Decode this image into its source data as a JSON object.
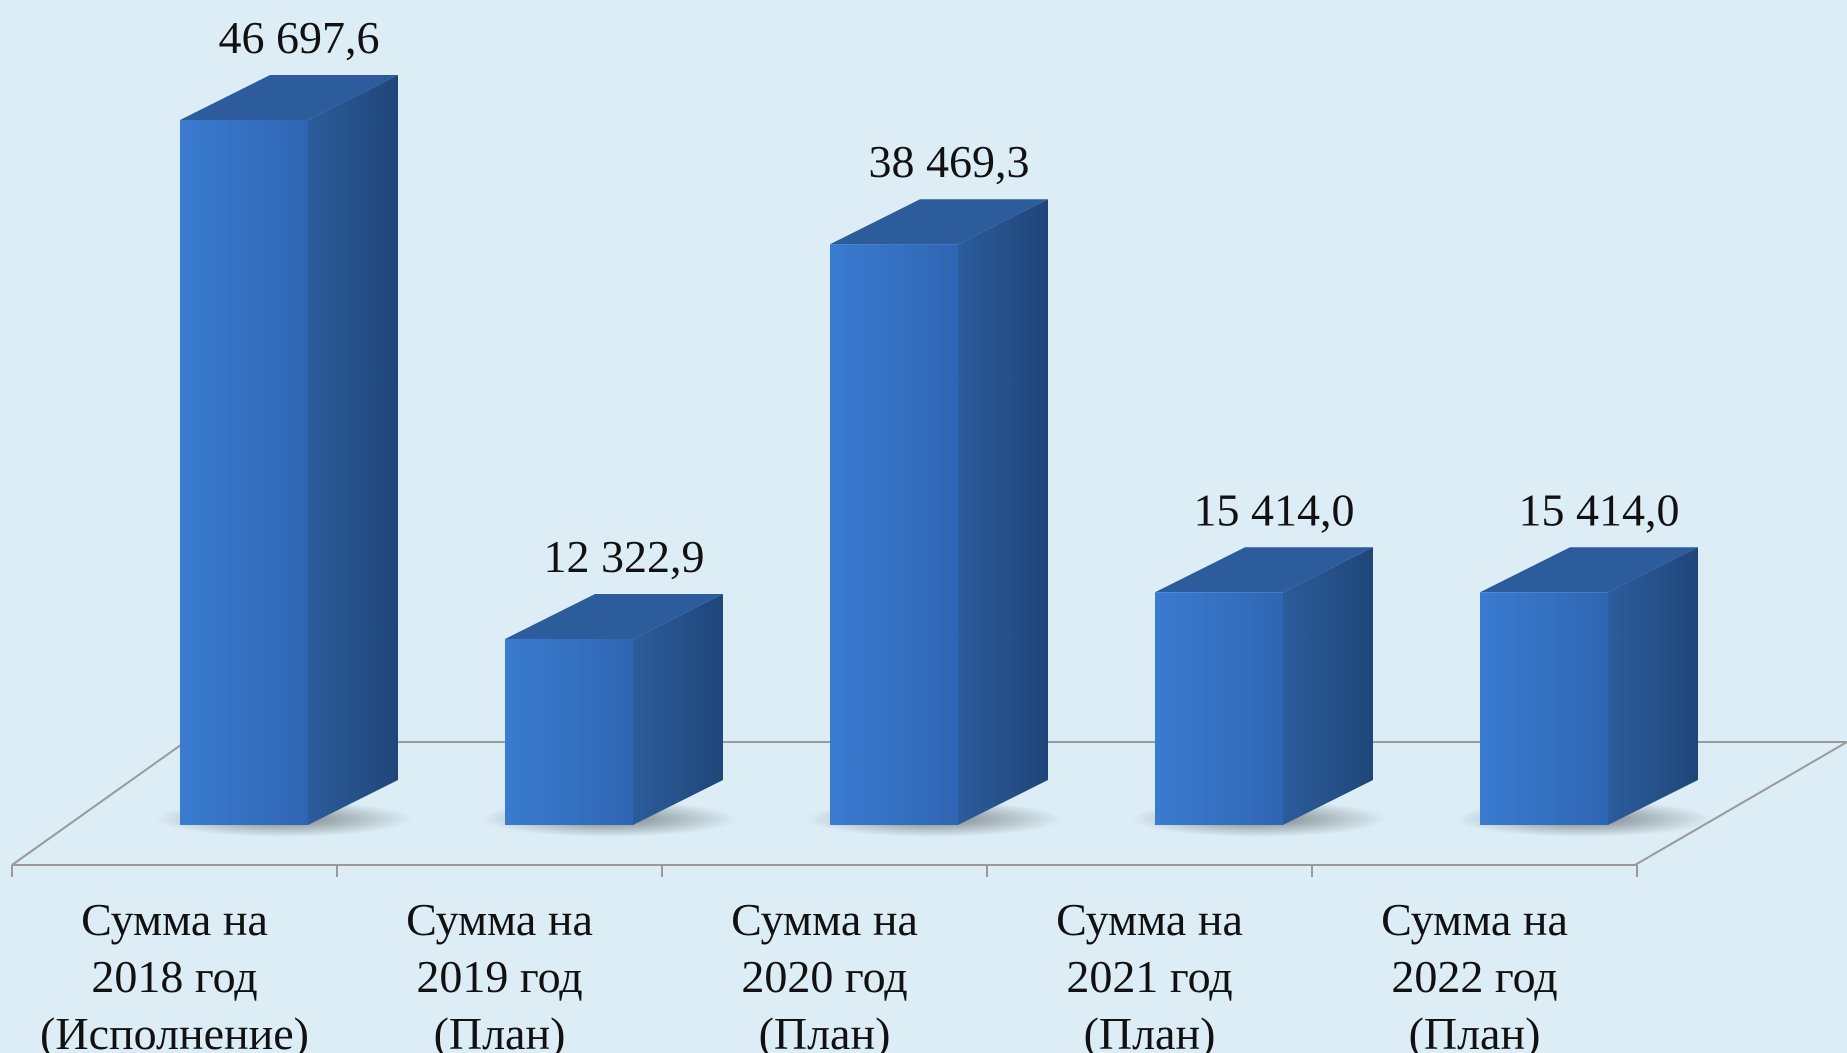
{
  "chart_data": {
    "type": "bar",
    "style": "3d-column",
    "categories": [
      [
        "Сумма на",
        "2018 год",
        "(Исполнение)"
      ],
      [
        "Сумма на",
        "2019 год",
        "(План)"
      ],
      [
        "Сумма на",
        "2020 год",
        "(План)"
      ],
      [
        "Сумма на",
        "2021 год",
        "(План)"
      ],
      [
        "Сумма на",
        "2022 год",
        "(План)"
      ]
    ],
    "values": [
      46697.6,
      12322.9,
      38469.3,
      15414.0,
      15414.0
    ],
    "data_labels": [
      "46 697,6",
      "12 322,9",
      "38 469,3",
      "15 414,0",
      "15 414,0"
    ],
    "title": "",
    "xlabel": "",
    "ylabel": "",
    "ylim": [
      0,
      46697.6
    ],
    "grid": false,
    "legend": "none",
    "colors": {
      "background": "#dcedf5",
      "bar_front": "#3a7bd0",
      "bar_front_dark": "#2f66b3",
      "bar_side": "#1f4679",
      "bar_top": "#2c5c9c",
      "axis_line": "#9a9a9a",
      "text": "#111111"
    }
  }
}
